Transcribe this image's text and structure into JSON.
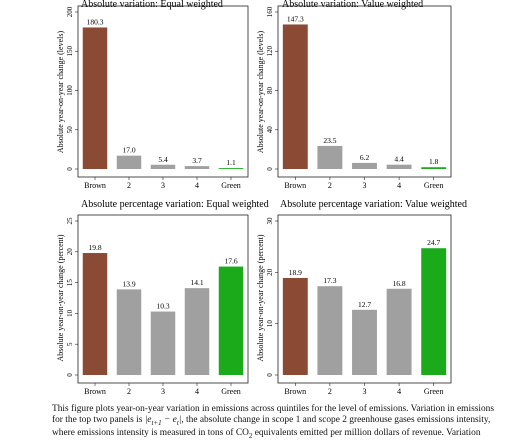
{
  "chart_data": [
    {
      "type": "bar",
      "title": "Absolute variation: Equal weighted",
      "ylabel": "Absolute year-on-year change (levels)",
      "categories": [
        "Brown",
        "2",
        "3",
        "4",
        "Green"
      ],
      "values": [
        180.3,
        17.0,
        5.4,
        3.7,
        1.1
      ],
      "value_labels": [
        "180.3",
        "17.0",
        "5.4",
        "3.7",
        "1.1"
      ],
      "ylim": [
        0,
        200
      ],
      "yticks": [
        0,
        50,
        100,
        150,
        200
      ],
      "ytick_labels": [
        "0",
        "50",
        "100",
        "150",
        "200"
      ],
      "colors": [
        "#8b4a34",
        "#a0a0a0",
        "#a0a0a0",
        "#a0a0a0",
        "#1aaa1a"
      ]
    },
    {
      "type": "bar",
      "title": "Absolute variation: Value weighted",
      "ylabel": "Absolute year-on-year change (levels)",
      "categories": [
        "Brown",
        "2",
        "3",
        "4",
        "Green"
      ],
      "values": [
        147.3,
        23.5,
        6.2,
        4.4,
        1.8
      ],
      "value_labels": [
        "147.3",
        "23.5",
        "6.2",
        "4.4",
        "1.8"
      ],
      "ylim": [
        0,
        160
      ],
      "yticks": [
        0,
        40,
        80,
        120,
        160
      ],
      "ytick_labels": [
        "0",
        "40",
        "80",
        "120",
        "160"
      ],
      "colors": [
        "#8b4a34",
        "#a0a0a0",
        "#a0a0a0",
        "#a0a0a0",
        "#1aaa1a"
      ]
    },
    {
      "type": "bar",
      "title": "Absolute percentage variation: Equal weighted",
      "ylabel": "Absolute year-on-year change (percent)",
      "categories": [
        "Brown",
        "2",
        "3",
        "4",
        "Green"
      ],
      "values": [
        19.8,
        13.9,
        10.3,
        14.1,
        17.6
      ],
      "value_labels": [
        "19.8",
        "13.9",
        "10.3",
        "14.1",
        "17.6"
      ],
      "ylim": [
        0,
        25
      ],
      "yticks": [
        0,
        5,
        10,
        15,
        20,
        25
      ],
      "ytick_labels": [
        "0",
        "5",
        "10",
        "15",
        "20",
        "25"
      ],
      "colors": [
        "#8b4a34",
        "#a0a0a0",
        "#a0a0a0",
        "#a0a0a0",
        "#1aaa1a"
      ]
    },
    {
      "type": "bar",
      "title": "Absolute percentage variation: Value weighted",
      "ylabel": "Absolute year-on-year change (percent)",
      "categories": [
        "Brown",
        "2",
        "3",
        "4",
        "Green"
      ],
      "values": [
        18.9,
        17.3,
        12.7,
        16.8,
        24.7
      ],
      "value_labels": [
        "18.9",
        "17.3",
        "12.7",
        "16.8",
        "24.7"
      ],
      "ylim": [
        0,
        30
      ],
      "yticks": [
        0,
        10,
        20,
        30
      ],
      "ytick_labels": [
        "0",
        "10",
        "20",
        "30"
      ],
      "colors": [
        "#8b4a34",
        "#a0a0a0",
        "#a0a0a0",
        "#a0a0a0",
        "#1aaa1a"
      ]
    }
  ],
  "caption": {
    "line1": "This figure plots year-on-year variation in emissions across quintiles for the level of emissions. Variation in emissions",
    "line2_a": "for the top two panels is ",
    "line2_math": "|e",
    "line2_sub1": "t+1",
    "line2_math2": " − e",
    "line2_sub2": "t",
    "line2_math3": "|",
    "line2_b": ", the absolute change in scope 1 and scope 2 greenhouse gases emissions intensity,",
    "line3_a": "where emissions intensity is measured in tons of CO",
    "line3_sub": "2",
    "line3_b": " equivalents emitted per million dollars of revenue.  Variation"
  }
}
